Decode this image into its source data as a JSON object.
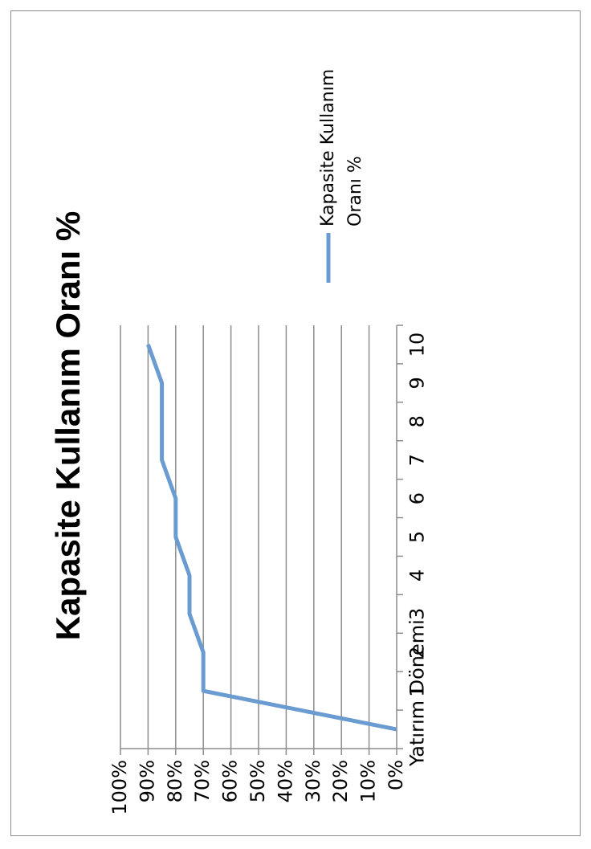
{
  "chart_data": {
    "type": "line",
    "title": "Kapasite Kullanım Oranı %",
    "xlabel": "",
    "ylabel": "",
    "categories": [
      "Yatırım Dönemi",
      "1",
      "2",
      "3",
      "4",
      "5",
      "6",
      "7",
      "8",
      "9",
      "10"
    ],
    "y_ticks": [
      "0%",
      "10%",
      "20%",
      "30%",
      "40%",
      "50%",
      "60%",
      "70%",
      "80%",
      "90%",
      "100%"
    ],
    "ylim": [
      0,
      100
    ],
    "series": [
      {
        "name": "Kapasite Kullanım Oranı %",
        "values": [
          0,
          70,
          70,
          75,
          75,
          80,
          80,
          85,
          85,
          85,
          90
        ],
        "color": "#6a9bd1"
      }
    ],
    "grid": true,
    "legend_position": "right"
  },
  "legend": {
    "line1": "Kapasite Kullanım",
    "line2": "Oranı %"
  }
}
